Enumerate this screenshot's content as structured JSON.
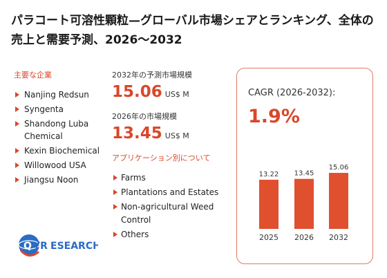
{
  "title": "パラコート可溶性顆粒—グローバル市場シェアとランキング、全体の売上と需要予測、2026～2032",
  "companies": {
    "label": "主要な企業",
    "items": [
      "Nanjing Redsun",
      "Syngenta",
      "Shandong Luba Chemical",
      "Kexin Biochemical",
      "Willowood USA",
      "Jiangsu Noon"
    ]
  },
  "market": {
    "y2032_label": "2032年の予測市場規模",
    "y2032_value": "15.06",
    "y2026_label": "2026年の市場規模",
    "y2026_value": "13.45",
    "unit": "US$ M"
  },
  "applications": {
    "label": "アプリケーション別について",
    "items": [
      "Farms",
      "Plantations and Estates",
      "Non-agricultural Weed Control",
      "Others"
    ]
  },
  "cagr": {
    "label": "CAGR (2026-2032):",
    "value": "1.9%"
  },
  "chart_data": {
    "type": "bar",
    "categories": [
      "2025",
      "2026",
      "2032"
    ],
    "values": [
      13.22,
      13.45,
      15.06
    ],
    "color": "#e0502f"
  },
  "logo": {
    "brand_q": "Q",
    "brand_yr": "YR",
    "brand_rest": "ESEARCH"
  },
  "colors": {
    "accent": "#d9472b",
    "bar": "#e0502f",
    "card_border": "#e07a66"
  }
}
